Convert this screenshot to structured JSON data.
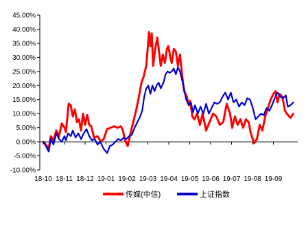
{
  "chart_data": {
    "type": "line",
    "x_ticks": [
      "18-10",
      "18-11",
      "18-12",
      "19-01",
      "19-02",
      "19-03",
      "19-04",
      "19-05",
      "19-06",
      "19-07",
      "19-08",
      "19-09"
    ],
    "y_ticks": [
      "45.00%",
      "40.00%",
      "35.00%",
      "30.00%",
      "25.00%",
      "20.00%",
      "15.00%",
      "10.00%",
      "5.00%",
      "0.00%",
      "-5.00%",
      "-10.00%"
    ],
    "ylim": [
      -10,
      45
    ],
    "y_unit": "%",
    "grid": false,
    "legend_position": "bottom",
    "series": [
      {
        "name": "传媒(中信)",
        "color": "#ff0000",
        "points": [
          [
            "2018-10-01",
            0
          ],
          [
            "2018-10-05",
            -1
          ],
          [
            "2018-10-09",
            -2.5
          ],
          [
            "2018-10-12",
            2
          ],
          [
            "2018-10-16",
            0.5
          ],
          [
            "2018-10-20",
            4
          ],
          [
            "2018-10-24",
            2
          ],
          [
            "2018-10-28",
            6.5
          ],
          [
            "2018-11-01",
            5
          ],
          [
            "2018-11-03",
            3.5
          ],
          [
            "2018-11-05",
            8.5
          ],
          [
            "2018-11-07",
            13.5
          ],
          [
            "2018-11-10",
            13
          ],
          [
            "2018-11-13",
            9
          ],
          [
            "2018-11-16",
            11.5
          ],
          [
            "2018-11-19",
            7
          ],
          [
            "2018-11-22",
            8
          ],
          [
            "2018-11-25",
            4
          ],
          [
            "2018-11-28",
            10
          ],
          [
            "2018-12-01",
            6
          ],
          [
            "2018-12-04",
            9.5
          ],
          [
            "2018-12-07",
            6
          ],
          [
            "2018-12-10",
            5.5
          ],
          [
            "2018-12-14",
            1.5
          ],
          [
            "2018-12-19",
            2
          ],
          [
            "2018-12-24",
            0
          ],
          [
            "2018-12-28",
            1
          ],
          [
            "2019-01-02",
            4.5
          ],
          [
            "2019-01-07",
            5
          ],
          [
            "2019-01-12",
            5.5
          ],
          [
            "2019-01-17",
            5
          ],
          [
            "2019-01-22",
            5.5
          ],
          [
            "2019-01-25",
            4
          ],
          [
            "2019-01-28",
            0.5
          ],
          [
            "2019-02-01",
            -1.5
          ],
          [
            "2019-02-05",
            3
          ],
          [
            "2019-02-10",
            8
          ],
          [
            "2019-02-14",
            12
          ],
          [
            "2019-02-18",
            17
          ],
          [
            "2019-02-21",
            21
          ],
          [
            "2019-02-24",
            23
          ],
          [
            "2019-02-26",
            25
          ],
          [
            "2019-02-28",
            27
          ],
          [
            "2019-03-02",
            33
          ],
          [
            "2019-03-04",
            39
          ],
          [
            "2019-03-06",
            34
          ],
          [
            "2019-03-08",
            38.5
          ],
          [
            "2019-03-10",
            27
          ],
          [
            "2019-03-13",
            33
          ],
          [
            "2019-03-16",
            37
          ],
          [
            "2019-03-18",
            33
          ],
          [
            "2019-03-21",
            27
          ],
          [
            "2019-03-24",
            31
          ],
          [
            "2019-03-27",
            28
          ],
          [
            "2019-03-30",
            33
          ],
          [
            "2019-04-01",
            34
          ],
          [
            "2019-04-04",
            30
          ],
          [
            "2019-04-06",
            28
          ],
          [
            "2019-04-09",
            33
          ],
          [
            "2019-04-12",
            32
          ],
          [
            "2019-04-15",
            27
          ],
          [
            "2019-04-18",
            31
          ],
          [
            "2019-04-21",
            24
          ],
          [
            "2019-04-24",
            18
          ],
          [
            "2019-04-28",
            16
          ],
          [
            "2019-05-01",
            13
          ],
          [
            "2019-05-03",
            14.5
          ],
          [
            "2019-05-06",
            9
          ],
          [
            "2019-05-09",
            8
          ],
          [
            "2019-05-13",
            10
          ],
          [
            "2019-05-17",
            6
          ],
          [
            "2019-05-21",
            10
          ],
          [
            "2019-05-26",
            4
          ],
          [
            "2019-05-31",
            7
          ],
          [
            "2019-06-05",
            10
          ],
          [
            "2019-06-10",
            9
          ],
          [
            "2019-06-15",
            6
          ],
          [
            "2019-06-20",
            7
          ],
          [
            "2019-06-25",
            13.5
          ],
          [
            "2019-06-30",
            10
          ],
          [
            "2019-07-03",
            5
          ],
          [
            "2019-07-07",
            9
          ],
          [
            "2019-07-11",
            6
          ],
          [
            "2019-07-15",
            8
          ],
          [
            "2019-07-19",
            5
          ],
          [
            "2019-07-23",
            8
          ],
          [
            "2019-07-27",
            7
          ],
          [
            "2019-07-30",
            3
          ],
          [
            "2019-08-04",
            -0.5
          ],
          [
            "2019-08-08",
            1
          ],
          [
            "2019-08-12",
            6
          ],
          [
            "2019-08-16",
            4
          ],
          [
            "2019-08-20",
            9
          ],
          [
            "2019-08-24",
            12
          ],
          [
            "2019-08-28",
            15
          ],
          [
            "2019-09-01",
            17
          ],
          [
            "2019-09-04",
            18
          ],
          [
            "2019-09-07",
            14
          ],
          [
            "2019-09-10",
            17
          ],
          [
            "2019-09-14",
            16
          ],
          [
            "2019-09-18",
            11
          ],
          [
            "2019-09-22",
            9.5
          ],
          [
            "2019-09-26",
            8.5
          ],
          [
            "2019-09-30",
            10
          ]
        ]
      },
      {
        "name": "上证指数",
        "color": "#0000cc",
        "points": [
          [
            "2018-10-01",
            0
          ],
          [
            "2018-10-05",
            -1.5
          ],
          [
            "2018-10-09",
            -3.5
          ],
          [
            "2018-10-12",
            1
          ],
          [
            "2018-10-16",
            -1
          ],
          [
            "2018-10-20",
            3
          ],
          [
            "2018-10-24",
            1
          ],
          [
            "2018-10-28",
            0
          ],
          [
            "2018-11-01",
            2
          ],
          [
            "2018-11-03",
            0.5
          ],
          [
            "2018-11-06",
            3
          ],
          [
            "2018-11-10",
            2
          ],
          [
            "2018-11-13",
            4
          ],
          [
            "2018-11-17",
            1.5
          ],
          [
            "2018-11-21",
            3
          ],
          [
            "2018-11-25",
            1
          ],
          [
            "2018-11-29",
            3
          ],
          [
            "2018-12-03",
            4.5
          ],
          [
            "2018-12-07",
            2
          ],
          [
            "2018-12-11",
            0.5
          ],
          [
            "2018-12-15",
            1
          ],
          [
            "2018-12-19",
            -1
          ],
          [
            "2018-12-23",
            0
          ],
          [
            "2018-12-28",
            -2.5
          ],
          [
            "2019-01-02",
            -4
          ],
          [
            "2019-01-06",
            -1.5
          ],
          [
            "2019-01-10",
            -1
          ],
          [
            "2019-01-14",
            0
          ],
          [
            "2019-01-18",
            1
          ],
          [
            "2019-01-22",
            0.5
          ],
          [
            "2019-01-26",
            1.5
          ],
          [
            "2019-01-30",
            1
          ],
          [
            "2019-02-03",
            2
          ],
          [
            "2019-02-07",
            2.5
          ],
          [
            "2019-02-11",
            5
          ],
          [
            "2019-02-15",
            7
          ],
          [
            "2019-02-19",
            9
          ],
          [
            "2019-02-22",
            11
          ],
          [
            "2019-02-25",
            16
          ],
          [
            "2019-02-28",
            19
          ],
          [
            "2019-03-03",
            20
          ],
          [
            "2019-03-06",
            17
          ],
          [
            "2019-03-09",
            20
          ],
          [
            "2019-03-12",
            18
          ],
          [
            "2019-03-15",
            20
          ],
          [
            "2019-03-18",
            21
          ],
          [
            "2019-03-21",
            19
          ],
          [
            "2019-03-25",
            21
          ],
          [
            "2019-03-28",
            24
          ],
          [
            "2019-03-31",
            25
          ],
          [
            "2019-04-03",
            24.5
          ],
          [
            "2019-04-06",
            25
          ],
          [
            "2019-04-09",
            26
          ],
          [
            "2019-04-12",
            24
          ],
          [
            "2019-04-15",
            26.5
          ],
          [
            "2019-04-18",
            25
          ],
          [
            "2019-04-21",
            22
          ],
          [
            "2019-04-24",
            19
          ],
          [
            "2019-04-27",
            15
          ],
          [
            "2019-05-01",
            13
          ],
          [
            "2019-05-04",
            14
          ],
          [
            "2019-05-07",
            10.5
          ],
          [
            "2019-05-10",
            13
          ],
          [
            "2019-05-14",
            10
          ],
          [
            "2019-05-18",
            12.5
          ],
          [
            "2019-05-22",
            10
          ],
          [
            "2019-05-26",
            13.5
          ],
          [
            "2019-05-30",
            10
          ],
          [
            "2019-06-03",
            12
          ],
          [
            "2019-06-07",
            14
          ],
          [
            "2019-06-11",
            13.5
          ],
          [
            "2019-06-15",
            14
          ],
          [
            "2019-06-19",
            16
          ],
          [
            "2019-06-23",
            17.5
          ],
          [
            "2019-06-27",
            15
          ],
          [
            "2019-07-01",
            17.5
          ],
          [
            "2019-07-05",
            14
          ],
          [
            "2019-07-09",
            15
          ],
          [
            "2019-07-13",
            12.5
          ],
          [
            "2019-07-17",
            14
          ],
          [
            "2019-07-21",
            13
          ],
          [
            "2019-07-25",
            15.5
          ],
          [
            "2019-07-29",
            15
          ],
          [
            "2019-08-02",
            12
          ],
          [
            "2019-08-06",
            8
          ],
          [
            "2019-08-10",
            9
          ],
          [
            "2019-08-14",
            10
          ],
          [
            "2019-08-18",
            9.5
          ],
          [
            "2019-08-22",
            12
          ],
          [
            "2019-08-26",
            11
          ],
          [
            "2019-08-30",
            13
          ],
          [
            "2019-09-03",
            15.5
          ],
          [
            "2019-09-07",
            17.5
          ],
          [
            "2019-09-11",
            16
          ],
          [
            "2019-09-15",
            15.5
          ],
          [
            "2019-09-19",
            16.5
          ],
          [
            "2019-09-22",
            12.5
          ],
          [
            "2019-09-26",
            13
          ],
          [
            "2019-09-30",
            14
          ]
        ]
      }
    ]
  }
}
